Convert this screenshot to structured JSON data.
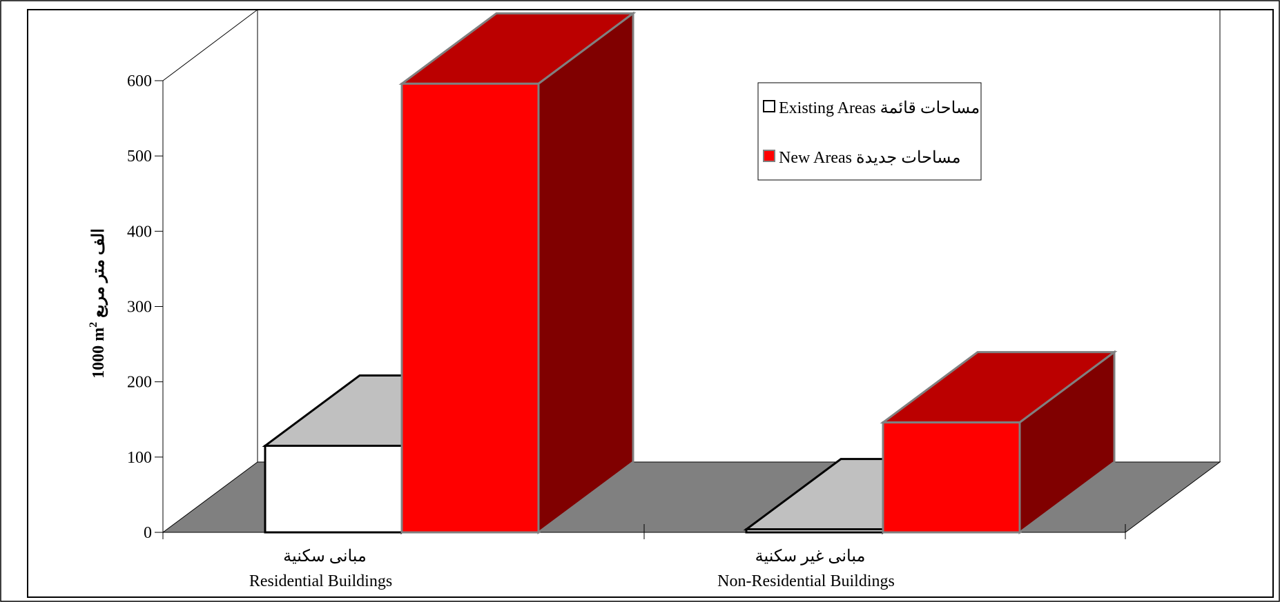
{
  "chart_data": {
    "type": "bar",
    "categories_ar": [
      "مبانى سكنية",
      "مبانى غير سكنية"
    ],
    "categories": [
      "Residential Buildings",
      "Non-Residential Buildings"
    ],
    "series": [
      {
        "name": "Existing Areas",
        "name_ar": "مساحات  قائمة",
        "values": [
          115,
          4
        ],
        "colors": {
          "front": "#ffffff",
          "top": "#c0c0c0",
          "side": "#808080",
          "stroke": "#000000"
        }
      },
      {
        "name": "New Areas",
        "name_ar": "مساحات  جديدة",
        "values": [
          596,
          146
        ],
        "colors": {
          "front": "#ff0000",
          "top": "#bb0000",
          "side": "#800000",
          "stroke": "#808080"
        }
      }
    ],
    "ylabel_prefix": "1000 m",
    "ylabel_sup": "2",
    "ylabel_ar": "الف متر مربع",
    "ylim": [
      0,
      600
    ],
    "yticks": [
      "0",
      "100",
      "200",
      "300",
      "400",
      "500",
      "600"
    ],
    "legend_position": "top-right",
    "grid": false,
    "floor_color": "#808080"
  }
}
